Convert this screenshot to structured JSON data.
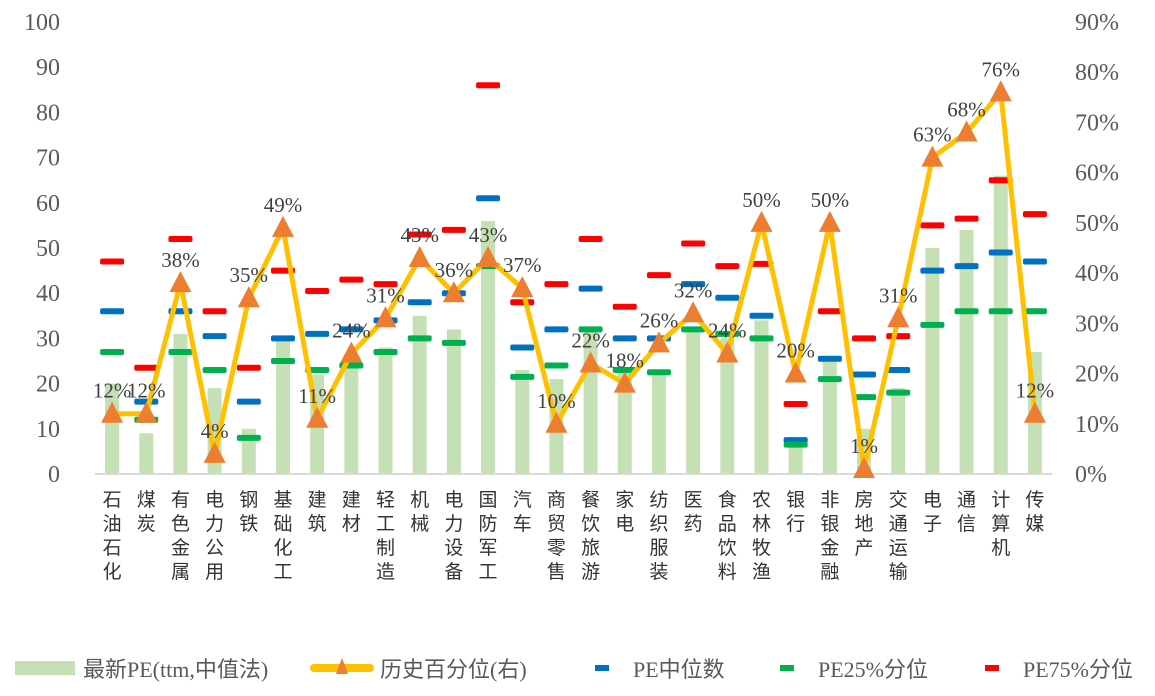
{
  "chart_data": {
    "type": "bar",
    "categories": [
      "石油石化",
      "煤炭",
      "有色金属",
      "电力公用",
      "钢铁",
      "基础化工",
      "建筑",
      "建材",
      "轻工制造",
      "机械",
      "电力设备",
      "国防军工",
      "汽车",
      "商贸零售",
      "餐饮旅游",
      "家电",
      "纺织服装",
      "医药",
      "食品饮料",
      "农林牧渔",
      "银行",
      "非银金融",
      "房地产",
      "交通运输",
      "电子",
      "通信",
      "计算机",
      "传媒"
    ],
    "left_axis": {
      "ylim": [
        0,
        100
      ],
      "ticks": [
        "0",
        "10",
        "20",
        "30",
        "40",
        "50",
        "60",
        "70",
        "80",
        "90",
        "100"
      ]
    },
    "right_axis": {
      "ylim": [
        0,
        90
      ],
      "ticks": [
        "0%",
        "10%",
        "20%",
        "30%",
        "40%",
        "50%",
        "60%",
        "70%",
        "80%",
        "90%"
      ]
    },
    "series": [
      {
        "name": "最新PE(ttm,中值法)",
        "type": "bar",
        "axis": "left",
        "color": "#c5e0b4",
        "values": [
          20,
          9,
          31,
          19,
          10,
          30,
          22,
          24,
          28,
          35,
          32,
          56,
          23,
          21,
          32,
          23,
          23,
          32,
          30,
          34,
          6,
          25,
          10,
          19,
          50,
          54,
          66,
          27
        ]
      },
      {
        "name": "历史百分位(右)",
        "type": "line",
        "axis": "right",
        "color": "#ffc000",
        "marker_color": "#ed7d31",
        "values": [
          12,
          12,
          38,
          4,
          35,
          49,
          11,
          24,
          31,
          43,
          36,
          43,
          37,
          10,
          22,
          18,
          26,
          32,
          24,
          50,
          20,
          50,
          1,
          31,
          63,
          68,
          76,
          12
        ],
        "labels": [
          "12%",
          "12%",
          "38%",
          "4%",
          "35%",
          "49%",
          "11%",
          "24%",
          "31%",
          "43%",
          "36%",
          "43%",
          "37%",
          "10%",
          "22%",
          "18%",
          "26%",
          "32%",
          "24%",
          "50%",
          "20%",
          "50%",
          "1%",
          "31%",
          "63%",
          "68%",
          "76%",
          "12%"
        ]
      },
      {
        "name": "PE中位数",
        "type": "dash",
        "axis": "left",
        "color": "#0070c0",
        "values": [
          36,
          16,
          36,
          30.5,
          16,
          30,
          31,
          32,
          34,
          38,
          40,
          61,
          28,
          32,
          41,
          30,
          30,
          42,
          39,
          35,
          7.5,
          25.5,
          22,
          23,
          45,
          46,
          49,
          47
        ]
      },
      {
        "name": "PE25%分位",
        "type": "dash",
        "axis": "left",
        "color": "#00b050",
        "values": [
          27,
          12,
          27,
          23,
          8,
          25,
          23,
          24,
          27,
          30,
          29,
          46,
          21.5,
          24,
          32,
          23,
          22.5,
          32,
          31,
          30,
          6.5,
          21,
          17,
          18,
          33,
          36,
          36,
          36
        ]
      },
      {
        "name": "PE75%分位",
        "type": "dash",
        "axis": "left",
        "color": "#ff0000",
        "values": [
          47,
          23.5,
          52,
          36,
          23.5,
          45,
          40.5,
          43,
          42,
          53,
          54,
          86,
          38,
          42,
          52,
          37,
          44,
          51,
          46,
          46.5,
          15.5,
          36,
          30,
          30.5,
          55,
          56.5,
          65,
          57.5
        ]
      }
    ],
    "legend": "bottom"
  }
}
